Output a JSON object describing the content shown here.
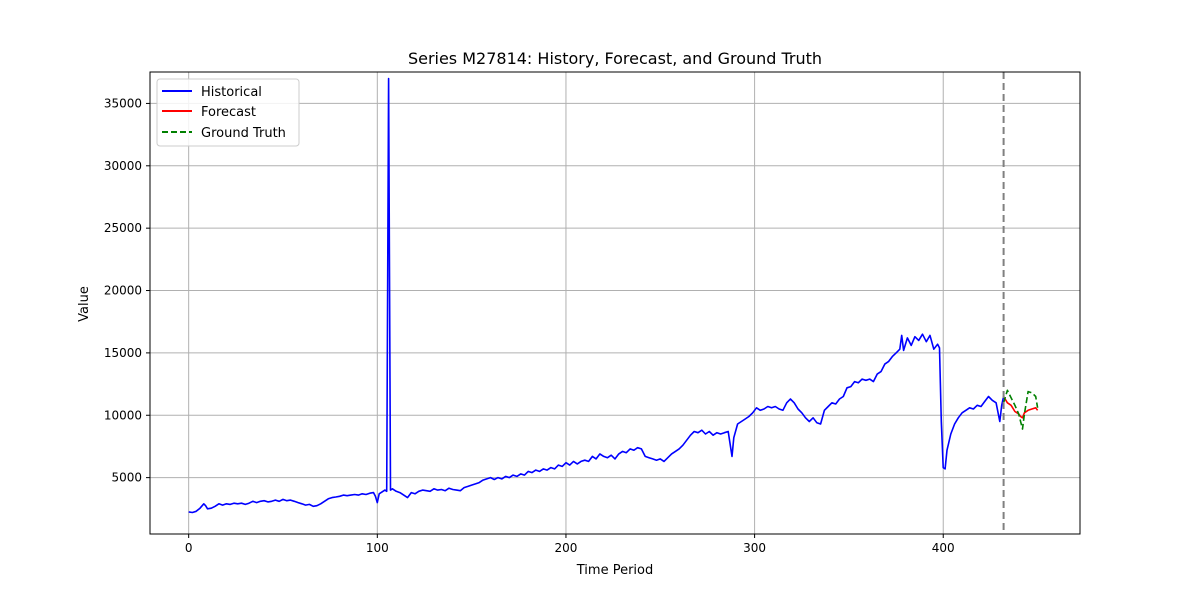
{
  "chart_data": {
    "type": "line",
    "title": "Series M27814: History, Forecast, and Ground Truth",
    "xlabel": "Time Period",
    "ylabel": "Value",
    "xlim": [
      -20.5,
      472.5
    ],
    "ylim": [
      480,
      37520
    ],
    "x_ticks": [
      0,
      100,
      200,
      300,
      400
    ],
    "y_ticks": [
      5000,
      10000,
      15000,
      20000,
      25000,
      30000,
      35000
    ],
    "grid": true,
    "legend_position": "upper left",
    "forecast_start_marker": 432,
    "colors": {
      "historical": "#0000ff",
      "forecast": "#ff0000",
      "ground_truth": "#008000",
      "marker_line": "#808080",
      "grid": "#b0b0b0"
    },
    "series": [
      {
        "name": "Historical",
        "style": "solid",
        "points": [
          [
            0,
            2250
          ],
          [
            2,
            2200
          ],
          [
            4,
            2300
          ],
          [
            6,
            2550
          ],
          [
            8,
            2900
          ],
          [
            9,
            2750
          ],
          [
            10,
            2500
          ],
          [
            12,
            2550
          ],
          [
            14,
            2700
          ],
          [
            16,
            2900
          ],
          [
            18,
            2800
          ],
          [
            20,
            2900
          ],
          [
            22,
            2850
          ],
          [
            24,
            2950
          ],
          [
            26,
            2900
          ],
          [
            28,
            2950
          ],
          [
            30,
            2850
          ],
          [
            32,
            2950
          ],
          [
            34,
            3100
          ],
          [
            36,
            3000
          ],
          [
            38,
            3100
          ],
          [
            40,
            3150
          ],
          [
            42,
            3050
          ],
          [
            44,
            3100
          ],
          [
            46,
            3200
          ],
          [
            48,
            3100
          ],
          [
            50,
            3250
          ],
          [
            52,
            3150
          ],
          [
            54,
            3200
          ],
          [
            56,
            3100
          ],
          [
            58,
            3000
          ],
          [
            60,
            2900
          ],
          [
            62,
            2800
          ],
          [
            64,
            2850
          ],
          [
            66,
            2700
          ],
          [
            68,
            2750
          ],
          [
            70,
            2900
          ],
          [
            72,
            3100
          ],
          [
            74,
            3300
          ],
          [
            76,
            3400
          ],
          [
            78,
            3450
          ],
          [
            80,
            3500
          ],
          [
            82,
            3600
          ],
          [
            84,
            3550
          ],
          [
            86,
            3600
          ],
          [
            88,
            3650
          ],
          [
            90,
            3600
          ],
          [
            92,
            3700
          ],
          [
            94,
            3650
          ],
          [
            96,
            3750
          ],
          [
            98,
            3800
          ],
          [
            99,
            3500
          ],
          [
            100,
            3000
          ],
          [
            101,
            3700
          ],
          [
            103,
            3900
          ],
          [
            104,
            4000
          ],
          [
            105,
            3900
          ],
          [
            106,
            37000
          ],
          [
            107,
            4000
          ],
          [
            108,
            4100
          ],
          [
            110,
            3900
          ],
          [
            112,
            3800
          ],
          [
            114,
            3600
          ],
          [
            116,
            3400
          ],
          [
            118,
            3800
          ],
          [
            120,
            3700
          ],
          [
            122,
            3900
          ],
          [
            124,
            4000
          ],
          [
            126,
            3950
          ],
          [
            128,
            3900
          ],
          [
            130,
            4100
          ],
          [
            132,
            4000
          ],
          [
            134,
            4050
          ],
          [
            136,
            3950
          ],
          [
            138,
            4150
          ],
          [
            140,
            4050
          ],
          [
            142,
            4000
          ],
          [
            144,
            3950
          ],
          [
            146,
            4200
          ],
          [
            148,
            4300
          ],
          [
            150,
            4400
          ],
          [
            152,
            4500
          ],
          [
            154,
            4600
          ],
          [
            156,
            4800
          ],
          [
            158,
            4900
          ],
          [
            160,
            5000
          ],
          [
            162,
            4850
          ],
          [
            164,
            5000
          ],
          [
            166,
            4900
          ],
          [
            168,
            5100
          ],
          [
            170,
            5000
          ],
          [
            172,
            5200
          ],
          [
            174,
            5100
          ],
          [
            176,
            5300
          ],
          [
            178,
            5200
          ],
          [
            180,
            5500
          ],
          [
            182,
            5400
          ],
          [
            184,
            5600
          ],
          [
            186,
            5500
          ],
          [
            188,
            5700
          ],
          [
            190,
            5600
          ],
          [
            192,
            5800
          ],
          [
            194,
            5700
          ],
          [
            196,
            6000
          ],
          [
            198,
            5900
          ],
          [
            200,
            6200
          ],
          [
            202,
            6000
          ],
          [
            204,
            6300
          ],
          [
            206,
            6100
          ],
          [
            208,
            6300
          ],
          [
            210,
            6400
          ],
          [
            212,
            6300
          ],
          [
            214,
            6700
          ],
          [
            216,
            6500
          ],
          [
            218,
            6900
          ],
          [
            220,
            6700
          ],
          [
            222,
            6600
          ],
          [
            224,
            6800
          ],
          [
            226,
            6500
          ],
          [
            228,
            6900
          ],
          [
            230,
            7100
          ],
          [
            232,
            7000
          ],
          [
            234,
            7300
          ],
          [
            236,
            7200
          ],
          [
            238,
            7400
          ],
          [
            240,
            7300
          ],
          [
            242,
            6700
          ],
          [
            244,
            6600
          ],
          [
            246,
            6500
          ],
          [
            248,
            6400
          ],
          [
            250,
            6500
          ],
          [
            252,
            6300
          ],
          [
            254,
            6600
          ],
          [
            256,
            6900
          ],
          [
            258,
            7100
          ],
          [
            260,
            7300
          ],
          [
            262,
            7600
          ],
          [
            264,
            8000
          ],
          [
            266,
            8400
          ],
          [
            268,
            8700
          ],
          [
            270,
            8600
          ],
          [
            272,
            8800
          ],
          [
            274,
            8500
          ],
          [
            276,
            8700
          ],
          [
            278,
            8400
          ],
          [
            280,
            8600
          ],
          [
            282,
            8500
          ],
          [
            284,
            8600
          ],
          [
            286,
            8700
          ],
          [
            288,
            6700
          ],
          [
            289,
            8200
          ],
          [
            291,
            9300
          ],
          [
            293,
            9500
          ],
          [
            295,
            9700
          ],
          [
            297,
            9900
          ],
          [
            299,
            10200
          ],
          [
            301,
            10600
          ],
          [
            303,
            10400
          ],
          [
            305,
            10500
          ],
          [
            307,
            10700
          ],
          [
            309,
            10600
          ],
          [
            311,
            10700
          ],
          [
            313,
            10500
          ],
          [
            315,
            10400
          ],
          [
            317,
            11000
          ],
          [
            319,
            11300
          ],
          [
            321,
            11000
          ],
          [
            323,
            10500
          ],
          [
            325,
            10200
          ],
          [
            327,
            9800
          ],
          [
            329,
            9500
          ],
          [
            331,
            9800
          ],
          [
            333,
            9400
          ],
          [
            335,
            9300
          ],
          [
            337,
            10400
          ],
          [
            339,
            10700
          ],
          [
            341,
            11000
          ],
          [
            343,
            10900
          ],
          [
            345,
            11300
          ],
          [
            347,
            11500
          ],
          [
            349,
            12200
          ],
          [
            351,
            12300
          ],
          [
            353,
            12700
          ],
          [
            355,
            12600
          ],
          [
            357,
            12900
          ],
          [
            359,
            12800
          ],
          [
            361,
            12900
          ],
          [
            363,
            12700
          ],
          [
            365,
            13300
          ],
          [
            367,
            13500
          ],
          [
            369,
            14100
          ],
          [
            371,
            14300
          ],
          [
            373,
            14700
          ],
          [
            375,
            15000
          ],
          [
            377,
            15300
          ],
          [
            378,
            16400
          ],
          [
            379,
            15200
          ],
          [
            381,
            16200
          ],
          [
            383,
            15600
          ],
          [
            385,
            16300
          ],
          [
            387,
            16000
          ],
          [
            389,
            16500
          ],
          [
            391,
            15900
          ],
          [
            393,
            16400
          ],
          [
            395,
            15300
          ],
          [
            397,
            15700
          ],
          [
            398,
            15400
          ],
          [
            399,
            9500
          ],
          [
            400,
            5800
          ],
          [
            401,
            5700
          ],
          [
            402,
            7200
          ],
          [
            404,
            8500
          ],
          [
            406,
            9300
          ],
          [
            408,
            9800
          ],
          [
            410,
            10200
          ],
          [
            412,
            10400
          ],
          [
            414,
            10600
          ],
          [
            416,
            10500
          ],
          [
            418,
            10800
          ],
          [
            420,
            10700
          ],
          [
            422,
            11100
          ],
          [
            424,
            11500
          ],
          [
            426,
            11200
          ],
          [
            428,
            11000
          ],
          [
            430,
            9500
          ],
          [
            431,
            10800
          ],
          [
            432,
            11500
          ]
        ]
      },
      {
        "name": "Forecast",
        "style": "solid",
        "points": [
          [
            432,
            11500
          ],
          [
            434,
            11000
          ],
          [
            436,
            10800
          ],
          [
            438,
            10300
          ],
          [
            440,
            10100
          ],
          [
            441,
            9900
          ],
          [
            442,
            9800
          ],
          [
            443,
            10200
          ],
          [
            445,
            10400
          ],
          [
            447,
            10500
          ],
          [
            449,
            10600
          ],
          [
            450,
            10400
          ]
        ]
      },
      {
        "name": "Ground Truth",
        "style": "dashed",
        "points": [
          [
            432,
            11000
          ],
          [
            434,
            12000
          ],
          [
            436,
            11400
          ],
          [
            438,
            10800
          ],
          [
            440,
            10100
          ],
          [
            442,
            8900
          ],
          [
            443,
            10100
          ],
          [
            445,
            11900
          ],
          [
            447,
            11800
          ],
          [
            449,
            11500
          ],
          [
            450,
            10600
          ]
        ]
      }
    ]
  }
}
